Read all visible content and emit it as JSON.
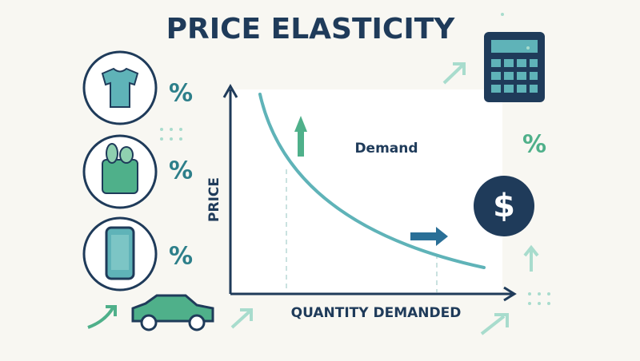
{
  "title": "PRICE ELASTICITY",
  "axes": {
    "y_label": "PRICE",
    "x_label": "QUANTITY DEMANDED"
  },
  "curve_label": "Demand",
  "percent_signs": [
    "%",
    "%",
    "%",
    "%"
  ],
  "dollar_sign": "$"
}
